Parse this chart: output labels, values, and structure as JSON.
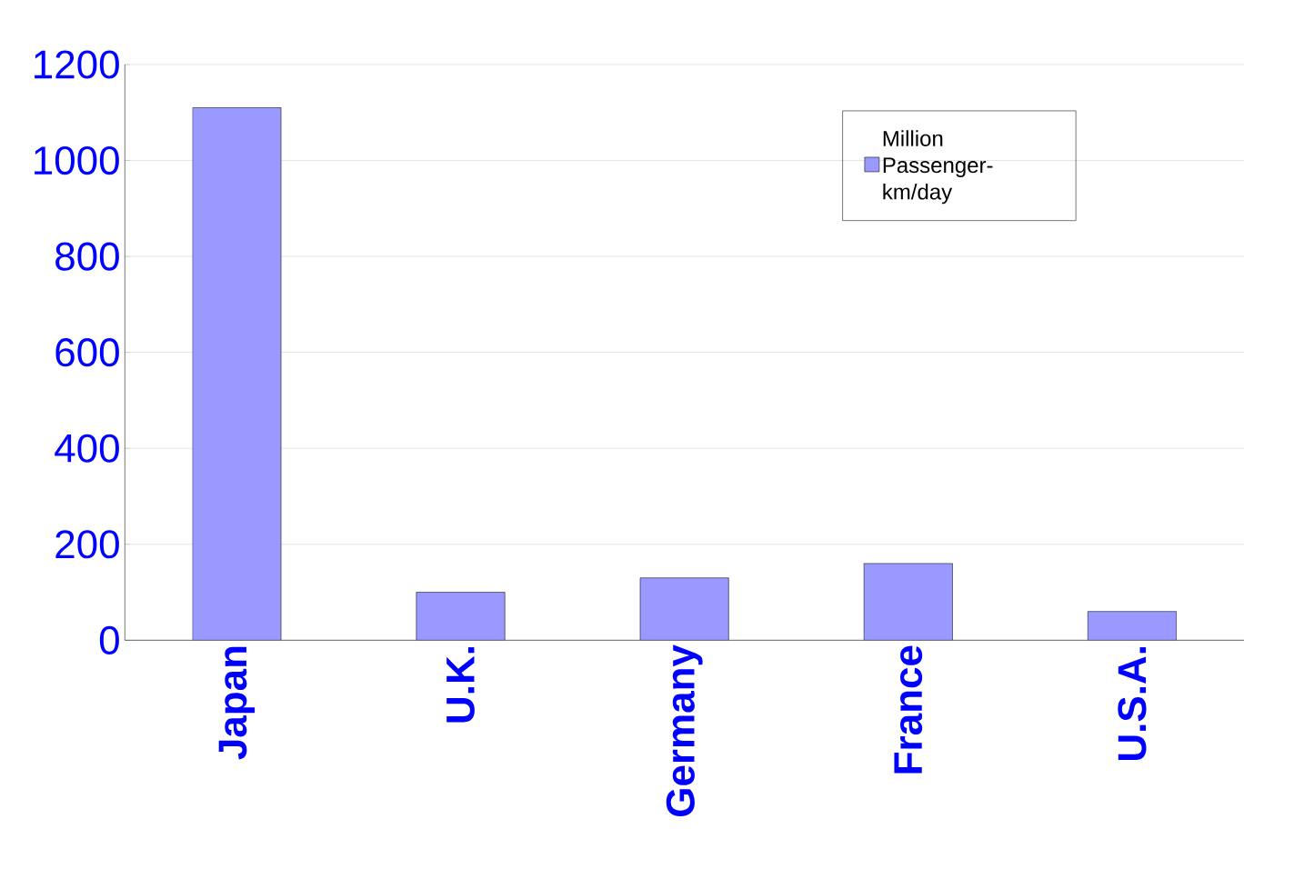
{
  "chart_data": {
    "type": "bar",
    "categories": [
      "Japan",
      "U.K.",
      "Germany",
      "France",
      "U.S.A."
    ],
    "series": [
      {
        "name": "Million Passenger-km/day",
        "color": "#9999ff",
        "values": [
          1110,
          100,
          130,
          160,
          60
        ]
      }
    ],
    "ylim": [
      0,
      1200
    ],
    "yticks": [
      0,
      200,
      400,
      600,
      800,
      1000,
      1200
    ],
    "grid": "y",
    "legend": "top right"
  }
}
